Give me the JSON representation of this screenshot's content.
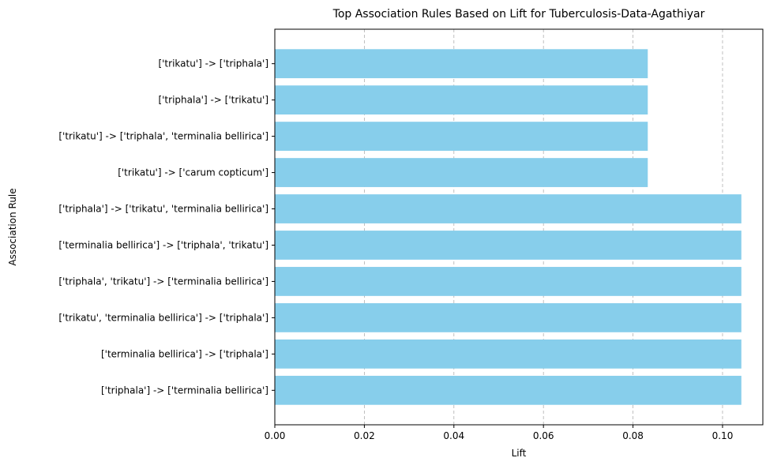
{
  "chart_data": {
    "type": "bar",
    "orientation": "horizontal",
    "title": "Top Association Rules Based on Lift for Tuberculosis-Data-Agathiyar",
    "xlabel": "Lift",
    "ylabel": "Association Rule",
    "xlim": [
      0.0,
      0.109
    ],
    "xticks": [
      0.0,
      0.02,
      0.04,
      0.06,
      0.08,
      0.1
    ],
    "xtick_labels": [
      "0.00",
      "0.02",
      "0.04",
      "0.06",
      "0.08",
      "0.10"
    ],
    "grid": "x-axis dashed",
    "bar_color": "#87ceeb",
    "categories": [
      "['trikatu'] -> ['triphala']",
      "['triphala'] -> ['trikatu']",
      "['trikatu'] -> ['triphala', 'terminalia bellirica']",
      "['trikatu'] -> ['carum copticum']",
      "['triphala'] -> ['trikatu', 'terminalia bellirica']",
      "['terminalia bellirica'] -> ['triphala', 'trikatu']",
      "['triphala', 'trikatu'] -> ['terminalia bellirica']",
      "['trikatu', 'terminalia bellirica'] -> ['triphala']",
      "['terminalia bellirica'] -> ['triphala']",
      "['triphala'] -> ['terminalia bellirica']"
    ],
    "values": [
      0.0833,
      0.0833,
      0.0833,
      0.0833,
      0.1042,
      0.1042,
      0.1042,
      0.1042,
      0.1042,
      0.1042
    ]
  }
}
